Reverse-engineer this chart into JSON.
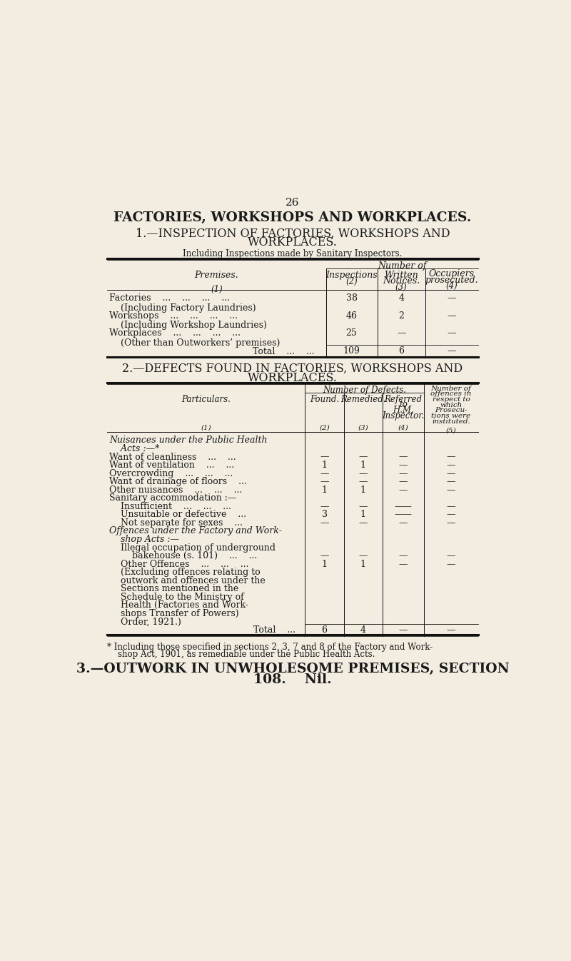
{
  "bg_color": "#f2ede0",
  "text_color": "#1a1a1a",
  "page_number": "26",
  "title1": "FACTORIES, WORKSHOPS AND WORKPLACES.",
  "title2_line1": "1.—INSPECTION OF FACTORIES, WORKSHOPS AND",
  "title2_line2": "WORKPLACES.",
  "subtitle1": "Including Inspections made by Sanitary Inspectors.",
  "table1_header2": "Number of",
  "title3_line1": "2.—DEFECTS FOUND IN FACTORIES, WORKSHOPS AND",
  "title3_line2": "WORKPLACES.",
  "footnote_line1": "* Including those specified in sections 2, 3, 7 and 8 of the Factory and Work-",
  "footnote_line2": "    shop Act, 1901, as remediable under the Public Health Acts.",
  "title4_line1": "3.—OUTWORK IN UNWHOLESOME PREMISES, SECTION",
  "title4_line2": "108.    Nil."
}
